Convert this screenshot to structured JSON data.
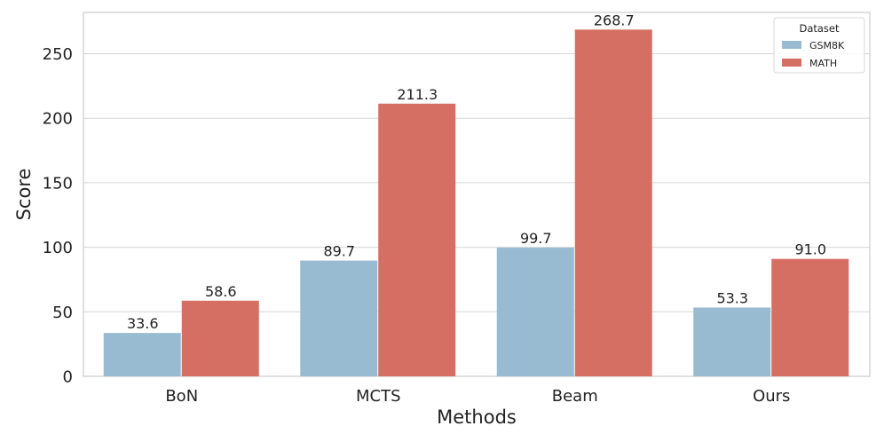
{
  "chart_data": {
    "type": "bar",
    "title": "",
    "xlabel": "Methods",
    "ylabel": "Score",
    "categories": [
      "BoN",
      "MCTS",
      "Beam",
      "Ours"
    ],
    "series": [
      {
        "name": "GSM8K",
        "values": [
          33.6,
          89.7,
          99.7,
          53.3
        ],
        "color": "#98bbd1"
      },
      {
        "name": "MATH",
        "values": [
          58.6,
          211.3,
          268.7,
          91.0
        ],
        "color": "#d66f63"
      }
    ],
    "data_labels": {
      "GSM8K": [
        "33.6",
        "89.7",
        "99.7",
        "53.3"
      ],
      "MATH": [
        "58.6",
        "211.3",
        "268.7",
        "91.0"
      ]
    },
    "ylim": [
      0,
      282
    ],
    "yticks": [
      0,
      50,
      100,
      150,
      200,
      250
    ],
    "grid": "horizontal",
    "legend": {
      "title": "Dataset",
      "placement": "top-right"
    }
  }
}
